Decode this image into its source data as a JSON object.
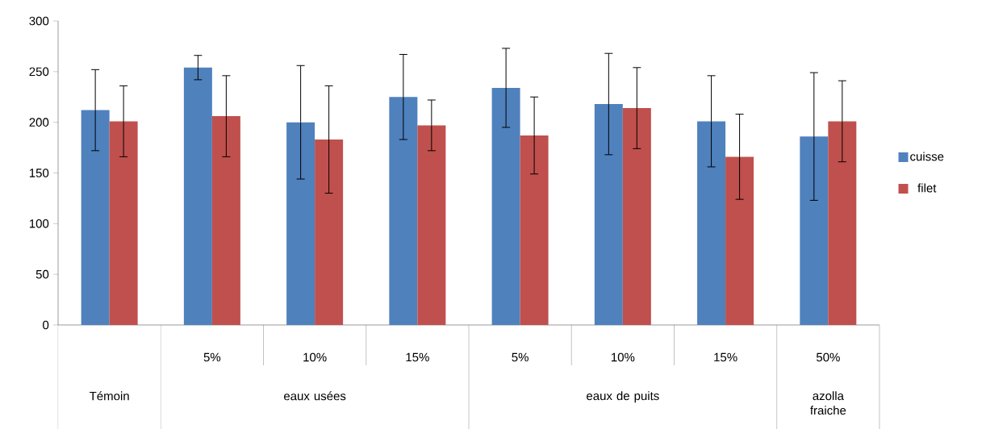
{
  "chart_data": {
    "type": "bar",
    "categories": [
      null,
      "5%",
      "10%",
      "15%",
      "5%",
      "10%",
      "15%",
      "50%"
    ],
    "annotations": [
      "Témoin",
      "eaux usées",
      "eaux de puits",
      "azolla fraiche"
    ],
    "series": [
      {
        "name": "cuisse",
        "color": "#4f81bd",
        "values": [
          212,
          254,
          200,
          225,
          234,
          218,
          201,
          186
        ],
        "errors": [
          40,
          12,
          56,
          42,
          39,
          50,
          45,
          63
        ]
      },
      {
        "name": "filet",
        "color": "#c0504d",
        "values": [
          201,
          206,
          183,
          197,
          187,
          214,
          166,
          201
        ],
        "errors": [
          35,
          40,
          53,
          25,
          38,
          40,
          42,
          40
        ]
      }
    ],
    "ylim": [
      0,
      300
    ],
    "yticks": [
      0,
      50,
      100,
      150,
      200,
      250,
      300
    ],
    "legend": "right"
  }
}
